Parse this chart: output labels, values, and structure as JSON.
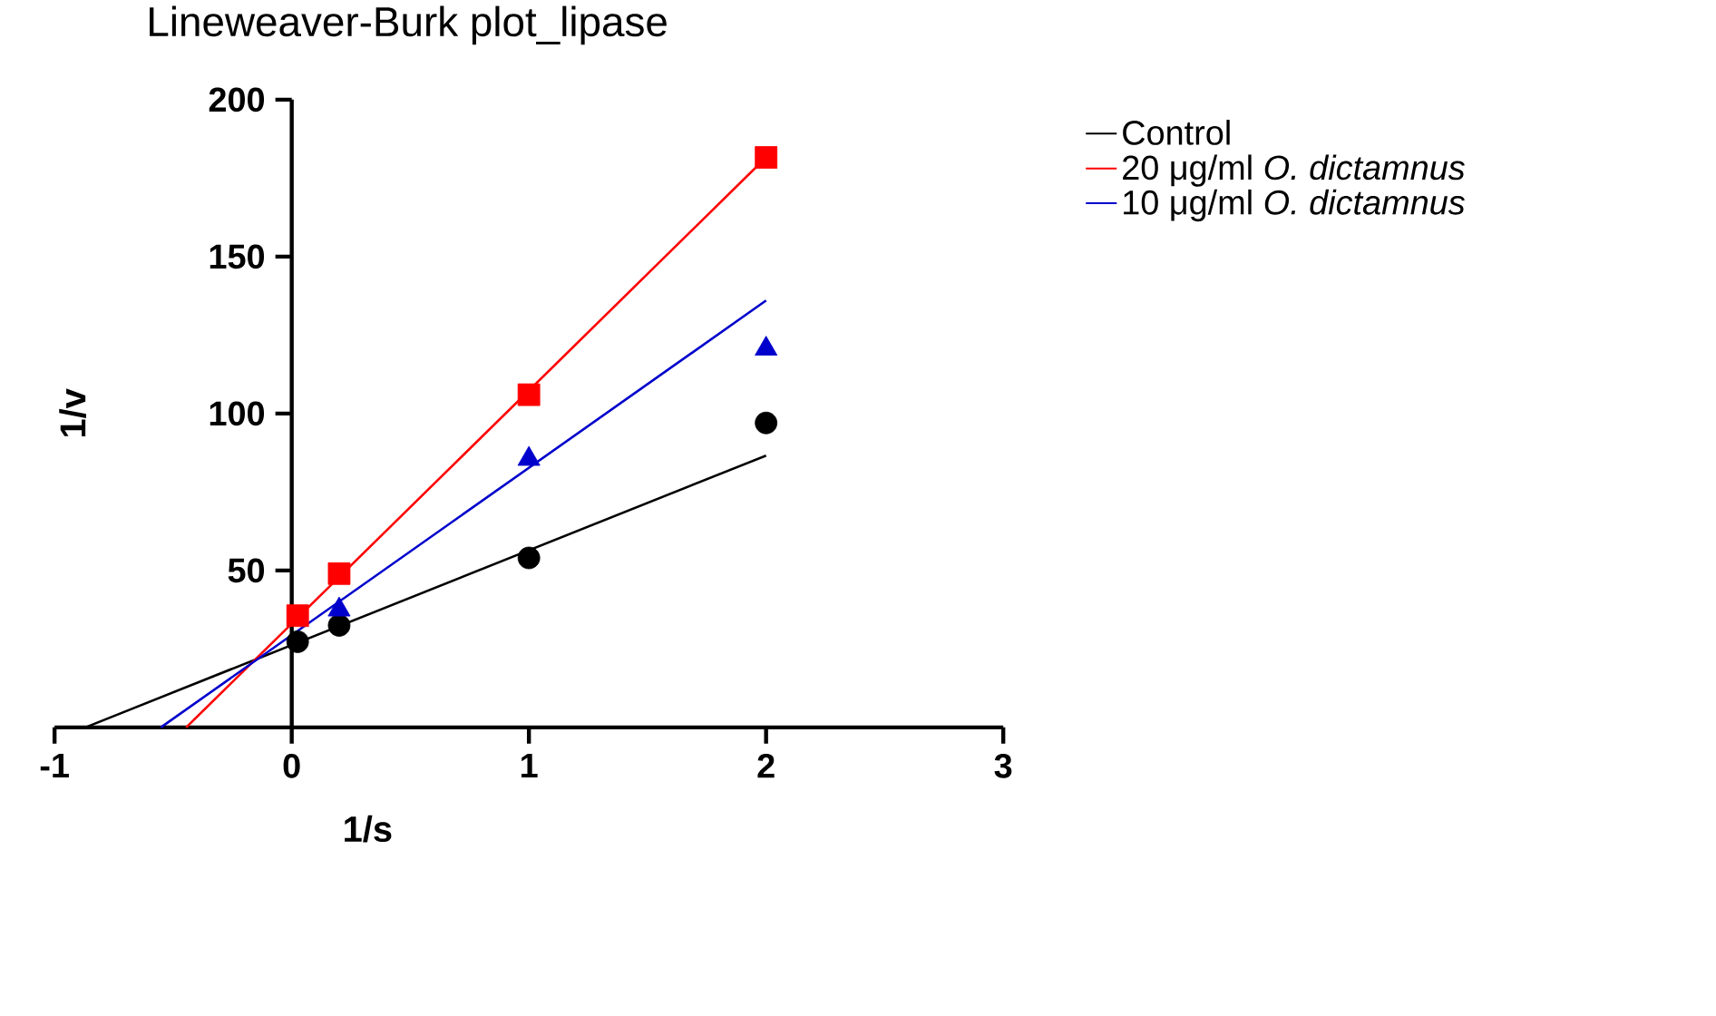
{
  "chart_data": {
    "type": "scatter",
    "title": "Lineweaver-Burk plot_lipase",
    "xlabel": "1/s",
    "ylabel": "1/v",
    "xlim": [
      -1,
      3
    ],
    "ylim": [
      0,
      200
    ],
    "xticks": [
      -1,
      0,
      1,
      2,
      3
    ],
    "yticks": [
      50,
      100,
      150,
      200
    ],
    "grid": false,
    "legend": "right",
    "series": [
      {
        "name": "Control",
        "type": "line",
        "color": "#000000",
        "marker": "none",
        "x": [
          -0.87,
          2
        ],
        "values": [
          0,
          86.6
        ]
      },
      {
        "name": "20 μg/ml *O. dictamnus*",
        "type": "line",
        "color": "#ff0000",
        "marker": "none",
        "x": [
          -0.445,
          2
        ],
        "values": [
          0,
          181.6
        ]
      },
      {
        "name": "10 μg/ml *O. dictamnus*",
        "type": "line",
        "color": "#0000cc",
        "marker": "none",
        "x": [
          -0.552,
          2
        ],
        "values": [
          0,
          136
        ]
      },
      {
        "color": "#000000",
        "marker": "circle",
        "x": [
          0.025,
          0.2,
          1,
          2
        ],
        "values": [
          27.3,
          32.5,
          54,
          97
        ]
      },
      {
        "color": "#ff0000",
        "marker": "square",
        "x": [
          0.025,
          0.2,
          1,
          2
        ],
        "values": [
          35.6,
          49,
          106,
          181.6
        ]
      },
      {
        "color": "#0000cc",
        "marker": "triangle",
        "x": [
          0.2,
          1,
          2
        ],
        "values": [
          37.5,
          85.5,
          120.6
        ]
      }
    ]
  }
}
